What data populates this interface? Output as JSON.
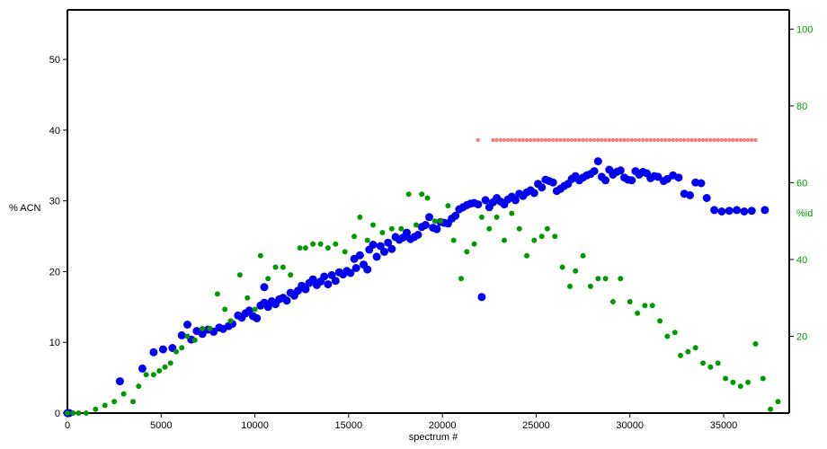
{
  "chart_data": {
    "type": "scatter",
    "xlabel": "spectrum #",
    "ylabel_left": "% ACN",
    "ylabel_right": "%id",
    "xlim": [
      0,
      38500
    ],
    "ylim_left": [
      0,
      57
    ],
    "ylim_right": [
      0,
      105
    ],
    "x_ticks": [
      "0",
      "5000",
      "10000",
      "15000",
      "20000",
      "25000",
      "30000",
      "35000"
    ],
    "y_left_ticks": [
      "0",
      "10",
      "20",
      "30",
      "40",
      "50"
    ],
    "y_right_ticks": [
      "20",
      "40",
      "60",
      "80",
      "100"
    ],
    "grid": false,
    "series": [
      {
        "axis": "left",
        "color": "#0000ee",
        "marker": "large-dot",
        "points": [
          [
            0,
            0
          ],
          [
            100,
            0
          ],
          [
            2800,
            4.5
          ],
          [
            4000,
            6.3
          ],
          [
            4600,
            8.6
          ],
          [
            5100,
            9
          ],
          [
            5600,
            9.2
          ],
          [
            6100,
            11
          ],
          [
            6400,
            12.5
          ],
          [
            6600,
            10.4
          ],
          [
            6900,
            11.6
          ],
          [
            7200,
            11.2
          ],
          [
            7500,
            11.8
          ],
          [
            7800,
            11.5
          ],
          [
            8100,
            12.1
          ],
          [
            8300,
            11.9
          ],
          [
            8600,
            12.3
          ],
          [
            8800,
            12.6
          ],
          [
            9100,
            13.8
          ],
          [
            9300,
            13.5
          ],
          [
            9500,
            14.1
          ],
          [
            9700,
            14.5
          ],
          [
            9900,
            13.7
          ],
          [
            10100,
            13.4
          ],
          [
            10300,
            15.2
          ],
          [
            10500,
            15.6
          ],
          [
            10500,
            17.8
          ],
          [
            10700,
            15
          ],
          [
            10900,
            15.8
          ],
          [
            11100,
            15.4
          ],
          [
            11300,
            16.1
          ],
          [
            11500,
            16.3
          ],
          [
            11700,
            15.9
          ],
          [
            11900,
            17
          ],
          [
            12100,
            16.6
          ],
          [
            12300,
            17.3
          ],
          [
            12500,
            18
          ],
          [
            12700,
            17.5
          ],
          [
            12900,
            18.4
          ],
          [
            13100,
            18.9
          ],
          [
            13300,
            18.1
          ],
          [
            13500,
            18.6
          ],
          [
            13700,
            19.3
          ],
          [
            13900,
            18.2
          ],
          [
            14100,
            19.5
          ],
          [
            14300,
            18.7
          ],
          [
            14500,
            19.9
          ],
          [
            14700,
            19.6
          ],
          [
            14900,
            20.1
          ],
          [
            15100,
            19.8
          ],
          [
            15300,
            21.8
          ],
          [
            15400,
            20.5
          ],
          [
            15600,
            22.3
          ],
          [
            15800,
            21
          ],
          [
            16000,
            20.3
          ],
          [
            16100,
            23.1
          ],
          [
            16300,
            23.8
          ],
          [
            16500,
            22.1
          ],
          [
            16700,
            23.6
          ],
          [
            16900,
            22.8
          ],
          [
            17100,
            24.1
          ],
          [
            17300,
            23.2
          ],
          [
            17500,
            24.9
          ],
          [
            17700,
            24.5
          ],
          [
            17900,
            24.8
          ],
          [
            18100,
            25.5
          ],
          [
            18300,
            24.6
          ],
          [
            18500,
            24.9
          ],
          [
            18700,
            25.2
          ],
          [
            18900,
            26.3
          ],
          [
            19100,
            26.6
          ],
          [
            19300,
            27.7
          ],
          [
            19500,
            26.2
          ],
          [
            19700,
            26
          ],
          [
            19900,
            27
          ],
          [
            20100,
            26.9
          ],
          [
            20300,
            26.8
          ],
          [
            20500,
            27.5
          ],
          [
            20700,
            27.9
          ],
          [
            20900,
            28.8
          ],
          [
            21100,
            29.1
          ],
          [
            21300,
            29.4
          ],
          [
            21500,
            29.6
          ],
          [
            21700,
            29.7
          ],
          [
            21900,
            29.5
          ],
          [
            22100,
            16.4
          ],
          [
            22300,
            30.1
          ],
          [
            22500,
            29.1
          ],
          [
            22700,
            29.8
          ],
          [
            22900,
            30.4
          ],
          [
            23100,
            29.9
          ],
          [
            23300,
            29.5
          ],
          [
            23500,
            30.2
          ],
          [
            23700,
            30.6
          ],
          [
            23900,
            30.1
          ],
          [
            24100,
            31
          ],
          [
            24300,
            30.7
          ],
          [
            24500,
            31.2
          ],
          [
            24700,
            31.5
          ],
          [
            24900,
            31.1
          ],
          [
            25100,
            32.4
          ],
          [
            25300,
            31.9
          ],
          [
            25500,
            33
          ],
          [
            25700,
            32.8
          ],
          [
            25900,
            32.6
          ],
          [
            26100,
            31.4
          ],
          [
            26300,
            31.7
          ],
          [
            26500,
            32.1
          ],
          [
            26700,
            32.4
          ],
          [
            26900,
            33.1
          ],
          [
            27100,
            33.5
          ],
          [
            27300,
            32.9
          ],
          [
            27500,
            33.3
          ],
          [
            27700,
            33.6
          ],
          [
            27900,
            33.8
          ],
          [
            28100,
            34.2
          ],
          [
            28300,
            35.6
          ],
          [
            28500,
            33.4
          ],
          [
            28700,
            32.9
          ],
          [
            28900,
            34.4
          ],
          [
            29100,
            33.7
          ],
          [
            29300,
            34.1
          ],
          [
            29500,
            34.3
          ],
          [
            29700,
            33.3
          ],
          [
            29900,
            33
          ],
          [
            30100,
            32.9
          ],
          [
            30300,
            34.2
          ],
          [
            30500,
            33.7
          ],
          [
            30700,
            34.1
          ],
          [
            30900,
            33.9
          ],
          [
            31100,
            33.2
          ],
          [
            31300,
            33.5
          ],
          [
            31500,
            33.4
          ],
          [
            31800,
            32.8
          ],
          [
            32000,
            33.1
          ],
          [
            32300,
            33.6
          ],
          [
            32600,
            33.3
          ],
          [
            32900,
            31
          ],
          [
            33200,
            30.8
          ],
          [
            33500,
            32.6
          ],
          [
            33800,
            32.5
          ],
          [
            34100,
            30.4
          ],
          [
            34500,
            28.7
          ],
          [
            34900,
            28.5
          ],
          [
            35300,
            28.6
          ],
          [
            35700,
            28.7
          ],
          [
            36100,
            28.5
          ],
          [
            36500,
            28.6
          ],
          [
            37200,
            28.7
          ]
        ]
      },
      {
        "axis": "right",
        "color": "#009900",
        "marker": "small-dot",
        "points": [
          [
            0,
            0
          ],
          [
            300,
            0
          ],
          [
            600,
            0
          ],
          [
            1000,
            0
          ],
          [
            1500,
            1
          ],
          [
            2000,
            2
          ],
          [
            2500,
            3
          ],
          [
            3000,
            5
          ],
          [
            3500,
            3
          ],
          [
            3800,
            7
          ],
          [
            4200,
            10
          ],
          [
            4600,
            10
          ],
          [
            4900,
            11
          ],
          [
            5200,
            12
          ],
          [
            5500,
            13
          ],
          [
            5800,
            16
          ],
          [
            6100,
            17
          ],
          [
            6400,
            20
          ],
          [
            6800,
            19
          ],
          [
            7200,
            22
          ],
          [
            7600,
            22
          ],
          [
            8000,
            31
          ],
          [
            8400,
            27
          ],
          [
            8700,
            24
          ],
          [
            9200,
            36
          ],
          [
            9600,
            30
          ],
          [
            10000,
            27
          ],
          [
            10300,
            41
          ],
          [
            10700,
            35
          ],
          [
            11100,
            38
          ],
          [
            11500,
            38
          ],
          [
            11900,
            36
          ],
          [
            12400,
            43
          ],
          [
            12700,
            43
          ],
          [
            13100,
            44
          ],
          [
            13500,
            44
          ],
          [
            13900,
            43
          ],
          [
            14300,
            44
          ],
          [
            14800,
            42
          ],
          [
            15300,
            46
          ],
          [
            15600,
            51
          ],
          [
            16000,
            45
          ],
          [
            16300,
            49
          ],
          [
            16800,
            47
          ],
          [
            17300,
            48
          ],
          [
            17800,
            48
          ],
          [
            18200,
            57
          ],
          [
            18600,
            49
          ],
          [
            18900,
            57
          ],
          [
            19200,
            56
          ],
          [
            19600,
            50
          ],
          [
            19900,
            50
          ],
          [
            20300,
            54
          ],
          [
            20600,
            45
          ],
          [
            21000,
            35
          ],
          [
            21300,
            42
          ],
          [
            21700,
            44
          ],
          [
            22100,
            51
          ],
          [
            22500,
            48
          ],
          [
            22900,
            51
          ],
          [
            23300,
            45
          ],
          [
            23700,
            52
          ],
          [
            24100,
            48
          ],
          [
            24500,
            41
          ],
          [
            24900,
            45
          ],
          [
            25300,
            46
          ],
          [
            25600,
            48
          ],
          [
            26000,
            46
          ],
          [
            26400,
            38
          ],
          [
            26800,
            33
          ],
          [
            27100,
            37
          ],
          [
            27500,
            41
          ],
          [
            27900,
            33
          ],
          [
            28300,
            35
          ],
          [
            28700,
            35
          ],
          [
            29100,
            29
          ],
          [
            29500,
            35
          ],
          [
            30000,
            29
          ],
          [
            30400,
            26
          ],
          [
            30800,
            28
          ],
          [
            31200,
            28
          ],
          [
            31600,
            24
          ],
          [
            32000,
            20
          ],
          [
            32400,
            21
          ],
          [
            32700,
            15
          ],
          [
            33100,
            16
          ],
          [
            33500,
            17
          ],
          [
            33900,
            13
          ],
          [
            34300,
            12
          ],
          [
            34700,
            13
          ],
          [
            35100,
            9
          ],
          [
            35500,
            8
          ],
          [
            35900,
            7
          ],
          [
            36300,
            8
          ],
          [
            36700,
            18
          ],
          [
            37100,
            9
          ],
          [
            37500,
            1
          ],
          [
            37900,
            3
          ]
        ]
      },
      {
        "axis": "left",
        "color": "#f08080",
        "marker": "tiny-dot",
        "x_values": [
          21900,
          22700,
          22900,
          23100,
          23300,
          23500,
          23700,
          23900,
          24100,
          24300,
          24500,
          24700,
          24900,
          25100,
          25300,
          25500,
          25700,
          25900,
          26100,
          26300,
          26500,
          26700,
          26900,
          27100,
          27300,
          27500,
          27700,
          27900,
          28100,
          28300,
          28500,
          28700,
          28900,
          29100,
          29300,
          29500,
          29700,
          29900,
          30100,
          30300,
          30500,
          30700,
          30900,
          31100,
          31300,
          31500,
          31700,
          31900,
          32100,
          32300,
          32500,
          32700,
          32900,
          33100,
          33300,
          33500,
          33700,
          33900,
          34100,
          34300,
          34500,
          34700,
          34900,
          35100,
          35300,
          35500,
          35700,
          35900,
          36100,
          36300,
          36500,
          36700
        ],
        "y_value": 38.6
      }
    ]
  }
}
